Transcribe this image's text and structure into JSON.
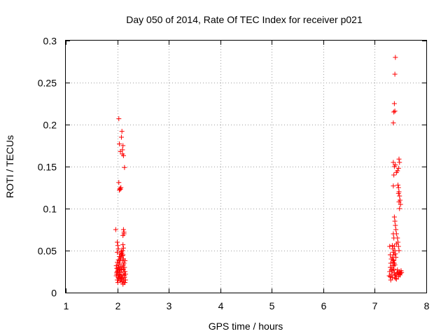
{
  "chart_data": {
    "type": "scatter",
    "title": "Day 050 of 2014, Rate Of TEC Index for receiver p021",
    "xlabel": "GPS time / hours",
    "ylabel": "ROTI / TECUs",
    "xlim": [
      1,
      8
    ],
    "ylim": [
      0,
      0.3
    ],
    "x_ticks": [
      "1",
      "2",
      "3",
      "4",
      "5",
      "6",
      "7",
      "8"
    ],
    "y_ticks": [
      "0",
      "0.05",
      "0.1",
      "0.15",
      "0.2",
      "0.25",
      "0.3"
    ],
    "grid": true,
    "marker": "+",
    "marker_color": "#ff0000",
    "series": [
      {
        "name": "ROTI",
        "points": [
          [
            2.03,
            0.207
          ],
          [
            2.04,
            0.177
          ],
          [
            2.06,
            0.168
          ],
          [
            2.08,
            0.185
          ],
          [
            2.09,
            0.192
          ],
          [
            2.1,
            0.17
          ],
          [
            2.11,
            0.175
          ],
          [
            2.12,
            0.163
          ],
          [
            2.14,
            0.149
          ],
          [
            2.1,
            0.165
          ],
          [
            2.03,
            0.131
          ],
          [
            2.04,
            0.122
          ],
          [
            2.05,
            0.124
          ],
          [
            2.06,
            0.123
          ],
          [
            2.07,
            0.125
          ],
          [
            1.97,
            0.075
          ],
          [
            2.12,
            0.075
          ],
          [
            2.13,
            0.07
          ],
          [
            2.11,
            0.068
          ],
          [
            2.13,
            0.072
          ],
          [
            2.0,
            0.06
          ],
          [
            2.01,
            0.056
          ],
          [
            2.02,
            0.052
          ],
          [
            2.0,
            0.048
          ],
          [
            2.11,
            0.057
          ],
          [
            2.12,
            0.053
          ],
          [
            1.98,
            0.02
          ],
          [
            1.99,
            0.022
          ],
          [
            2.0,
            0.025
          ],
          [
            2.01,
            0.028
          ],
          [
            2.02,
            0.03
          ],
          [
            2.03,
            0.033
          ],
          [
            2.04,
            0.035
          ],
          [
            2.05,
            0.038
          ],
          [
            2.06,
            0.04
          ],
          [
            2.07,
            0.042
          ],
          [
            2.08,
            0.045
          ],
          [
            2.09,
            0.047
          ],
          [
            2.1,
            0.05
          ],
          [
            2.11,
            0.045
          ],
          [
            2.12,
            0.04
          ],
          [
            2.13,
            0.035
          ],
          [
            2.14,
            0.03
          ],
          [
            2.15,
            0.025
          ],
          [
            2.0,
            0.015
          ],
          [
            2.02,
            0.018
          ],
          [
            2.04,
            0.021
          ],
          [
            2.06,
            0.024
          ],
          [
            2.08,
            0.027
          ],
          [
            2.1,
            0.03
          ],
          [
            2.12,
            0.033
          ],
          [
            2.14,
            0.02
          ],
          [
            2.16,
            0.015
          ],
          [
            2.13,
            0.012
          ],
          [
            2.11,
            0.01
          ],
          [
            2.09,
            0.013
          ],
          [
            2.07,
            0.016
          ],
          [
            2.05,
            0.019
          ],
          [
            2.03,
            0.022
          ],
          [
            2.01,
            0.026
          ],
          [
            1.99,
            0.029
          ],
          [
            1.98,
            0.032
          ],
          [
            2.0,
            0.036
          ],
          [
            2.02,
            0.039
          ],
          [
            2.04,
            0.043
          ],
          [
            2.06,
            0.046
          ],
          [
            2.08,
            0.049
          ],
          [
            2.1,
            0.038
          ],
          [
            2.12,
            0.028
          ],
          [
            2.14,
            0.018
          ],
          [
            2.15,
            0.012
          ],
          [
            2.13,
            0.025
          ],
          [
            2.11,
            0.021
          ],
          [
            2.09,
            0.017
          ],
          [
            2.07,
            0.031
          ],
          [
            2.05,
            0.027
          ],
          [
            2.03,
            0.017
          ],
          [
            2.01,
            0.012
          ],
          [
            1.99,
            0.024
          ],
          [
            2.08,
            0.02
          ],
          [
            2.06,
            0.014
          ],
          [
            2.04,
            0.028
          ],
          [
            2.1,
            0.044
          ],
          [
            2.12,
            0.015
          ],
          [
            2.15,
            0.038
          ],
          [
            2.16,
            0.022
          ],
          [
            7.4,
            0.28
          ],
          [
            7.39,
            0.26
          ],
          [
            7.38,
            0.225
          ],
          [
            7.37,
            0.215
          ],
          [
            7.39,
            0.216
          ],
          [
            7.36,
            0.202
          ],
          [
            7.47,
            0.159
          ],
          [
            7.48,
            0.155
          ],
          [
            7.46,
            0.148
          ],
          [
            7.44,
            0.145
          ],
          [
            7.42,
            0.143
          ],
          [
            7.4,
            0.152
          ],
          [
            7.38,
            0.15
          ],
          [
            7.36,
            0.155
          ],
          [
            7.37,
            0.14
          ],
          [
            7.45,
            0.128
          ],
          [
            7.46,
            0.125
          ],
          [
            7.47,
            0.12
          ],
          [
            7.48,
            0.115
          ],
          [
            7.49,
            0.11
          ],
          [
            7.5,
            0.105
          ],
          [
            7.48,
            0.1
          ],
          [
            7.47,
            0.108
          ],
          [
            7.46,
            0.118
          ],
          [
            7.36,
            0.127
          ],
          [
            7.38,
            0.09
          ],
          [
            7.39,
            0.085
          ],
          [
            7.4,
            0.08
          ],
          [
            7.41,
            0.075
          ],
          [
            7.42,
            0.07
          ],
          [
            7.44,
            0.065
          ],
          [
            7.36,
            0.07
          ],
          [
            7.37,
            0.065
          ],
          [
            7.34,
            0.056
          ],
          [
            7.35,
            0.052
          ],
          [
            7.36,
            0.048
          ],
          [
            7.37,
            0.045
          ],
          [
            7.38,
            0.055
          ],
          [
            7.39,
            0.05
          ],
          [
            7.4,
            0.046
          ],
          [
            7.41,
            0.042
          ],
          [
            7.42,
            0.058
          ],
          [
            7.45,
            0.06
          ],
          [
            7.46,
            0.055
          ],
          [
            7.47,
            0.05
          ],
          [
            7.29,
            0.055
          ],
          [
            7.3,
            0.045
          ],
          [
            7.28,
            0.02
          ],
          [
            7.29,
            0.025
          ],
          [
            7.3,
            0.03
          ],
          [
            7.31,
            0.035
          ],
          [
            7.32,
            0.04
          ],
          [
            7.33,
            0.022
          ],
          [
            7.34,
            0.018
          ],
          [
            7.35,
            0.026
          ],
          [
            7.36,
            0.032
          ],
          [
            7.37,
            0.038
          ],
          [
            7.38,
            0.024
          ],
          [
            7.39,
            0.02
          ],
          [
            7.4,
            0.017
          ],
          [
            7.41,
            0.021
          ],
          [
            7.42,
            0.016
          ],
          [
            7.43,
            0.023
          ],
          [
            7.44,
            0.027
          ],
          [
            7.45,
            0.024
          ],
          [
            7.46,
            0.019
          ],
          [
            7.47,
            0.022
          ],
          [
            7.48,
            0.025
          ],
          [
            7.49,
            0.021
          ],
          [
            7.5,
            0.023
          ],
          [
            7.51,
            0.026
          ],
          [
            7.52,
            0.024
          ],
          [
            7.31,
            0.015
          ],
          [
            7.33,
            0.03
          ],
          [
            7.35,
            0.036
          ],
          [
            7.37,
            0.028
          ],
          [
            7.39,
            0.033
          ],
          [
            7.34,
            0.042
          ],
          [
            7.36,
            0.039
          ],
          [
            7.32,
            0.027
          ],
          [
            7.3,
            0.019
          ],
          [
            7.38,
            0.035
          ]
        ]
      }
    ]
  }
}
